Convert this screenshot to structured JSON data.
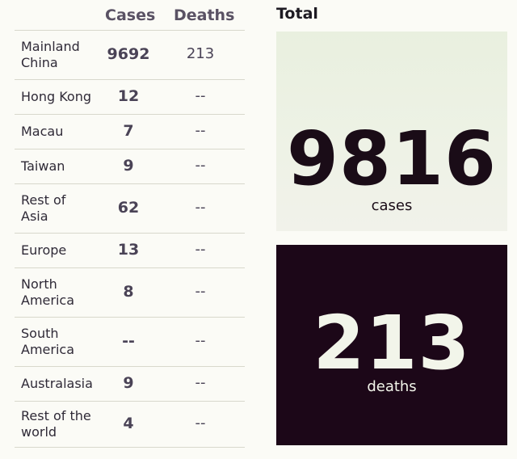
{
  "table": {
    "header_cases": "Cases",
    "header_deaths": "Deaths",
    "rows": [
      {
        "region": [
          "Mainland",
          "China"
        ],
        "cases": "9692",
        "deaths": "213"
      },
      {
        "region": [
          "Hong Kong"
        ],
        "cases": "12",
        "deaths": "--"
      },
      {
        "region": [
          "Macau"
        ],
        "cases": "7",
        "deaths": "--"
      },
      {
        "region": [
          "Taiwan"
        ],
        "cases": "9",
        "deaths": "--"
      },
      {
        "region": [
          "Rest of",
          "Asia"
        ],
        "cases": "62",
        "deaths": "--"
      },
      {
        "region": [
          "Europe"
        ],
        "cases": "13",
        "deaths": "--"
      },
      {
        "region": [
          "North",
          "America"
        ],
        "cases": "8",
        "deaths": "--"
      },
      {
        "region": [
          "South",
          "America"
        ],
        "cases": "--",
        "deaths": "--"
      },
      {
        "region": [
          "Australasia"
        ],
        "cases": "9",
        "deaths": "--"
      },
      {
        "region": [
          "Rest of the",
          "world"
        ],
        "cases": "4",
        "deaths": "--"
      }
    ]
  },
  "total": {
    "label": "Total",
    "cases": "9816",
    "cases_unit": "cases",
    "deaths": "213",
    "deaths_unit": "deaths"
  },
  "colors": {
    "cases_card_bg": "#eef2e6",
    "deaths_card_bg": "#1c0718"
  }
}
